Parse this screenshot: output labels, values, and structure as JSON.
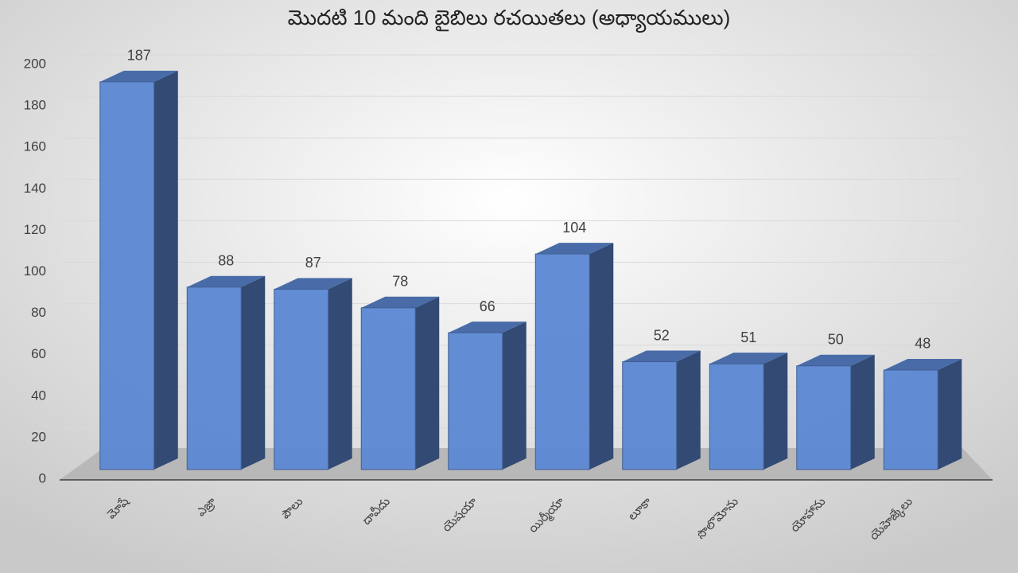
{
  "chart_data": {
    "type": "bar3d",
    "title": "మొదటి 10 మంది బైబిలు రచయితలు (అధ్యాయములు)",
    "categories": [
      "మోషే",
      "ఎజ్రా",
      "పౌలు",
      "దావీదు",
      "యెషయా",
      "యిర్మీయా",
      "లూకా",
      "సొలొమోను",
      "యోహాను",
      "యెహెజ్కేలు"
    ],
    "values": [
      187,
      88,
      87,
      78,
      66,
      104,
      52,
      51,
      50,
      48
    ],
    "color": "#5b87d2",
    "ylim": [
      0,
      200
    ],
    "yticks": [
      0,
      20,
      40,
      60,
      80,
      100,
      120,
      140,
      160,
      180,
      200
    ],
    "grid": true
  }
}
